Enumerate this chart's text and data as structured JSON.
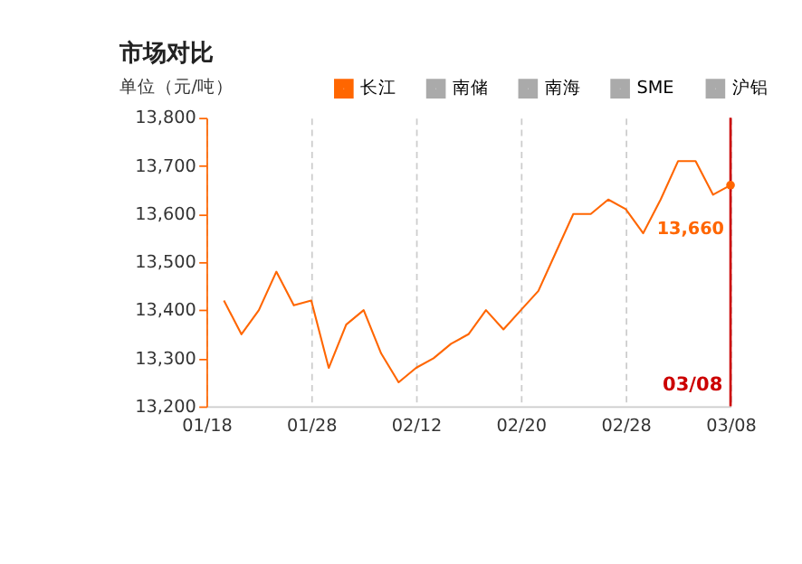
{
  "chart_data": {
    "type": "line",
    "title": "市场对比",
    "ylabel": "单位（元/吨）",
    "categories": [
      "01/18",
      null,
      null,
      null,
      null,
      null,
      "01/28",
      null,
      null,
      null,
      null,
      null,
      "02/12",
      null,
      null,
      null,
      null,
      null,
      "02/20",
      null,
      null,
      null,
      null,
      null,
      "02/28",
      null,
      null,
      null,
      null,
      null,
      "03/08"
    ],
    "series": [
      {
        "name": "长江",
        "color": "#ff6600",
        "values": [
          null,
          13420,
          13350,
          13400,
          13480,
          13410,
          13420,
          13280,
          13370,
          13400,
          13310,
          13250,
          13280,
          13300,
          13330,
          13350,
          13400,
          13360,
          13400,
          13440,
          13520,
          13600,
          13600,
          13630,
          13610,
          13560,
          13630,
          13710,
          13710,
          13640,
          13660
        ]
      },
      {
        "name": "南储",
        "color": "#aaaaaa",
        "values": [
          null,
          null,
          null,
          null,
          null,
          null,
          null,
          null,
          null,
          null,
          null,
          null,
          null,
          null,
          null,
          null,
          null,
          null,
          null,
          null,
          null,
          null,
          null,
          null,
          null,
          null,
          null,
          null,
          null,
          null,
          null
        ]
      },
      {
        "name": "南海",
        "color": "#aaaaaa",
        "values": [
          null,
          null,
          null,
          null,
          null,
          null,
          null,
          null,
          null,
          null,
          null,
          null,
          null,
          null,
          null,
          null,
          null,
          null,
          null,
          null,
          null,
          null,
          null,
          null,
          null,
          null,
          null,
          null,
          null,
          null,
          null
        ]
      },
      {
        "name": "SME",
        "color": "#aaaaaa",
        "values": [
          null,
          null,
          null,
          null,
          null,
          null,
          null,
          null,
          null,
          null,
          null,
          null,
          null,
          null,
          null,
          null,
          null,
          null,
          null,
          null,
          null,
          null,
          null,
          null,
          null,
          null,
          null,
          null,
          null,
          null,
          null
        ]
      },
      {
        "name": "沪铝",
        "color": "#aaaaaa",
        "values": [
          null,
          null,
          null,
          null,
          null,
          null,
          null,
          null,
          null,
          null,
          null,
          null,
          null,
          null,
          null,
          null,
          null,
          null,
          null,
          null,
          null,
          null,
          null,
          null,
          null,
          null,
          null,
          null,
          null,
          null,
          null
        ]
      }
    ],
    "ylim": [
      13200,
      13800
    ],
    "yticks": [
      {
        "value": 13200,
        "label": "13,200"
      },
      {
        "value": 13300,
        "label": "13,300"
      },
      {
        "value": 13400,
        "label": "13,400"
      },
      {
        "value": 13500,
        "label": "13,500"
      },
      {
        "value": 13600,
        "label": "13,600"
      },
      {
        "value": 13700,
        "label": "13,700"
      },
      {
        "value": 13800,
        "label": "13,800"
      }
    ],
    "grid": "x",
    "legend": "top",
    "marker": "none",
    "line_style": "solid",
    "annotations": [
      {
        "text": "13,660",
        "x": "03/08",
        "y": 13660
      }
    ],
    "ref_lines": [
      {
        "axis": "x",
        "value": "03/08",
        "label": "03/08",
        "color": "#cc0000"
      }
    ]
  }
}
